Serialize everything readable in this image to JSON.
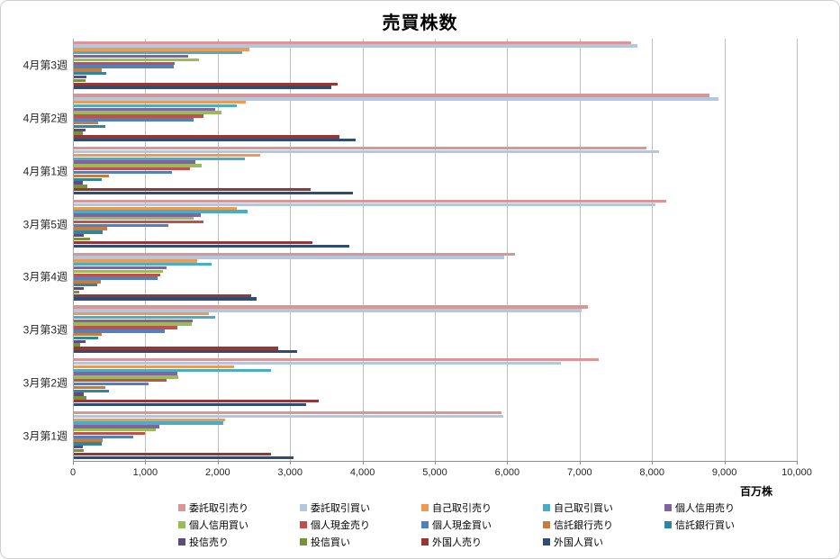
{
  "chart_data": {
    "type": "bar",
    "orientation": "horizontal",
    "title": "売買株数",
    "xlabel": "百万株",
    "ylabel": "",
    "xlim": [
      0,
      10000
    ],
    "grid": true,
    "legend_position": "bottom",
    "x_tick_values": [
      0,
      1000,
      2000,
      3000,
      4000,
      5000,
      6000,
      7000,
      8000,
      9000,
      10000
    ],
    "x_tick_labels": [
      "0",
      "1,000",
      "2,000",
      "3,000",
      "4,000",
      "5,000",
      "6,000",
      "7,000",
      "8,000",
      "9,000",
      "10,000"
    ],
    "categories": [
      "4月第3週",
      "4月第2週",
      "4月第1週",
      "3月第5週",
      "3月第4週",
      "3月第3週",
      "3月第2週",
      "3月第1週"
    ],
    "series": [
      {
        "name": "委託取引売り",
        "color": "#d99694",
        "values": [
          7700,
          8780,
          7910,
          8180,
          6090,
          7100,
          7250,
          5910
        ]
      },
      {
        "name": "委託取引買い",
        "color": "#b3c7e1",
        "values": [
          7790,
          8910,
          8080,
          8040,
          5940,
          7020,
          6730,
          5930
        ]
      },
      {
        "name": "自己取引売り",
        "color": "#ed9b51",
        "values": [
          2430,
          2380,
          2570,
          2250,
          1710,
          1870,
          2210,
          2090
        ]
      },
      {
        "name": "自己取引買い",
        "color": "#4bacc6",
        "values": [
          2320,
          2250,
          2360,
          2400,
          1900,
          1950,
          2730,
          2070
        ]
      },
      {
        "name": "個人信用売り",
        "color": "#8064a2",
        "values": [
          1580,
          1950,
          1680,
          1750,
          1280,
          1640,
          1430,
          1180
        ]
      },
      {
        "name": "個人信用買い",
        "color": "#9bbb59",
        "values": [
          1730,
          2040,
          1760,
          1660,
          1230,
          1630,
          1440,
          1130
        ]
      },
      {
        "name": "個人現金売り",
        "color": "#c0504d",
        "values": [
          1390,
          1790,
          1610,
          1790,
          1200,
          1430,
          1280,
          980
        ]
      },
      {
        "name": "個人現金買い",
        "color": "#4f81bd",
        "values": [
          1380,
          1660,
          1360,
          1300,
          1160,
          1250,
          1030,
          820
        ]
      },
      {
        "name": "信託銀行売り",
        "color": "#c77b3c",
        "values": [
          390,
          330,
          480,
          460,
          370,
          390,
          430,
          400
        ]
      },
      {
        "name": "信託銀行買い",
        "color": "#31859c",
        "values": [
          450,
          430,
          380,
          400,
          320,
          340,
          480,
          380
        ]
      },
      {
        "name": "投信売り",
        "color": "#604a7b",
        "values": [
          170,
          160,
          120,
          140,
          140,
          160,
          140,
          120
        ]
      },
      {
        "name": "投信買い",
        "color": "#76923c",
        "values": [
          160,
          120,
          190,
          220,
          70,
          90,
          180,
          140
        ]
      },
      {
        "name": "外国人売り",
        "color": "#953735",
        "values": [
          3650,
          3670,
          3270,
          3290,
          2450,
          2820,
          3380,
          2730
        ]
      },
      {
        "name": "外国人買い",
        "color": "#2c4d75",
        "values": [
          3560,
          3890,
          3860,
          3810,
          2520,
          3080,
          3210,
          3030
        ]
      }
    ]
  }
}
